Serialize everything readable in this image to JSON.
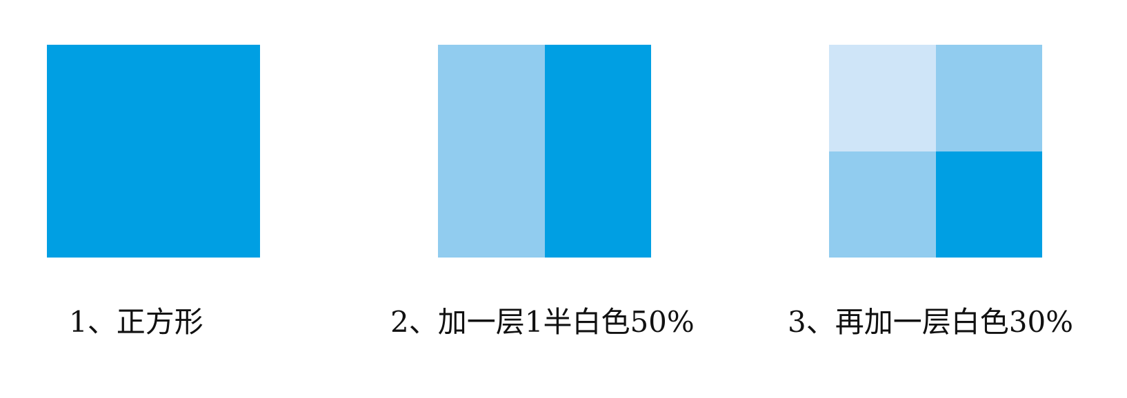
{
  "colors": {
    "base": "#009fe3",
    "white_50": "#91ccef",
    "white_50_then_30": "#cfe5f8"
  },
  "panels": [
    {
      "caption": "1、正方形",
      "cells": [
        "base"
      ]
    },
    {
      "caption": "2、加一层1半白色50%",
      "cells": [
        "white_50",
        "base"
      ]
    },
    {
      "caption": "3、再加一层白色30%",
      "cells": [
        "white_50_then_30",
        "white_50",
        "white_50",
        "base"
      ]
    }
  ]
}
